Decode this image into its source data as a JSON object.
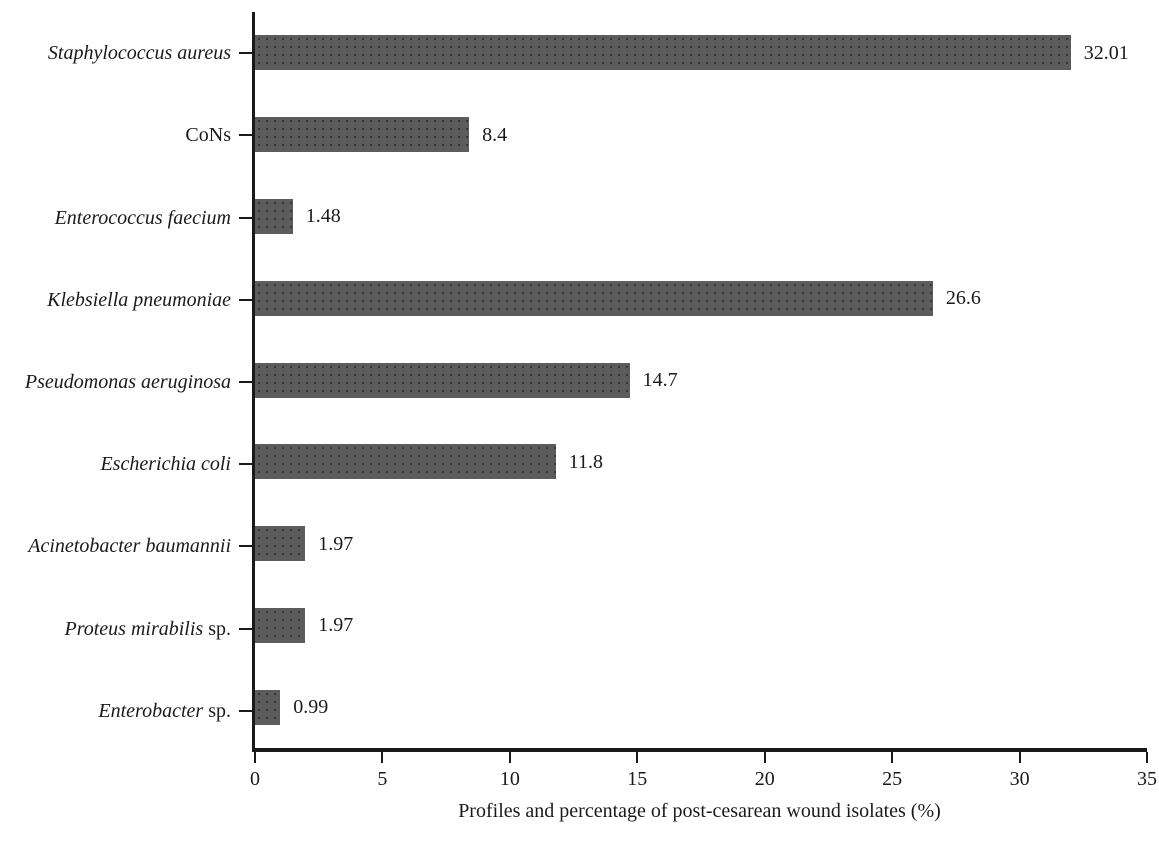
{
  "chart_data": {
    "type": "bar",
    "orientation": "horizontal",
    "title": "",
    "xlabel": "Profiles and percentage of post-cesarean wound isolates (%)",
    "ylabel": "",
    "xlim": [
      0,
      35
    ],
    "xticks": [
      0,
      5,
      10,
      15,
      20,
      25,
      30,
      35
    ],
    "grid": false,
    "legend": false,
    "bar_color": "#5c5c5c",
    "axis_color": "#1a1a1a",
    "categories": [
      "Staphylococcus aureus",
      "CoNs",
      "Enterococcus faecium",
      "Klebsiella pneumoniae",
      "Pseudomonas aeruginosa",
      "Escherichia coli",
      "Acinetobacter baumannii",
      "Proteus mirabilis sp.",
      "Enterobacter sp."
    ],
    "label_styles": [
      [
        {
          "text": "Staphylococcus aureus",
          "italic": true
        }
      ],
      [
        {
          "text": "CoNs",
          "italic": false
        }
      ],
      [
        {
          "text": "Enterococcus faecium",
          "italic": true
        }
      ],
      [
        {
          "text": "Klebsiella pneumoniae",
          "italic": true
        }
      ],
      [
        {
          "text": "Pseudomonas aeruginosa",
          "italic": true
        }
      ],
      [
        {
          "text": "Escherichia coli",
          "italic": true
        }
      ],
      [
        {
          "text": "Acinetobacter baumannii",
          "italic": true
        }
      ],
      [
        {
          "text": "Proteus mirabilis",
          "italic": true
        },
        {
          "text": " sp.",
          "italic": false
        }
      ],
      [
        {
          "text": "Enterobacter",
          "italic": true
        },
        {
          "text": " sp.",
          "italic": false
        }
      ]
    ],
    "values": [
      32.01,
      8.4,
      1.48,
      26.6,
      14.7,
      11.8,
      1.97,
      1.97,
      0.99
    ],
    "value_labels": [
      "32.01",
      "8.4",
      "1.48",
      "26.6",
      "14.7",
      "11.8",
      "1.97",
      "1.97",
      "0.99"
    ]
  }
}
